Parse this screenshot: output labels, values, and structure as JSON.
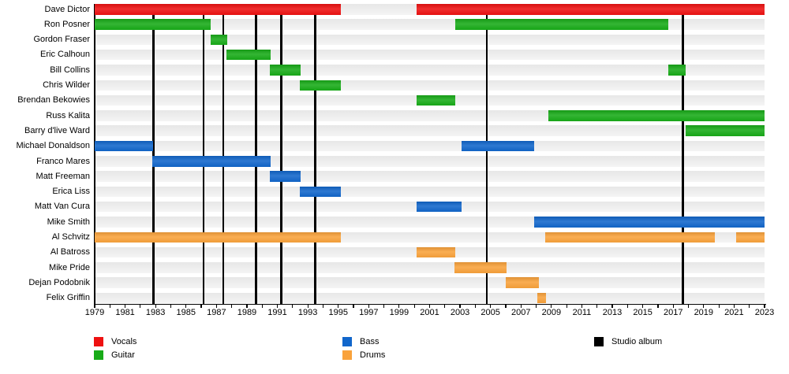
{
  "chart_data": {
    "type": "timeline",
    "title": "",
    "x_axis": {
      "start": 1979,
      "end": 2023,
      "minor_tick_interval": 1,
      "tick_label_interval": 2,
      "tick_labels": [
        "1979",
        "1981",
        "1983",
        "1985",
        "1987",
        "1989",
        "1991",
        "1993",
        "1995",
        "1997",
        "1999",
        "2001",
        "2003",
        "2005",
        "2007",
        "2009",
        "2011",
        "2013",
        "2015",
        "2017",
        "2019",
        "2021",
        "2023"
      ]
    },
    "role_colors": {
      "Vocals": "#ee1111",
      "Guitar": "#18ab18",
      "Bass": "#1166cb",
      "Drums": "#f9a23b"
    },
    "members": [
      {
        "name": "Dave Dictor",
        "role": "Vocals",
        "periods": [
          [
            1979,
            1995.15
          ],
          [
            2000.15,
            2023
          ]
        ]
      },
      {
        "name": "Ron Posner",
        "role": "Guitar",
        "periods": [
          [
            1979,
            1986.6
          ],
          [
            2002.7,
            2016.7
          ]
        ]
      },
      {
        "name": "Gordon Fraser",
        "role": "Guitar",
        "periods": [
          [
            1986.6,
            1987.7
          ]
        ]
      },
      {
        "name": "Eric Calhoun",
        "role": "Guitar",
        "periods": [
          [
            1987.65,
            1990.55
          ]
        ]
      },
      {
        "name": "Bill Collins",
        "role": "Guitar",
        "periods": [
          [
            1990.5,
            1992.55
          ],
          [
            2016.7,
            2017.8
          ]
        ]
      },
      {
        "name": "Chris Wilder",
        "role": "Guitar",
        "periods": [
          [
            1992.5,
            1995.15
          ]
        ]
      },
      {
        "name": "Brendan Bekowies",
        "role": "Guitar",
        "periods": [
          [
            2000.15,
            2002.7
          ]
        ]
      },
      {
        "name": "Russ Kalita",
        "role": "Guitar",
        "periods": [
          [
            2008.8,
            2023
          ]
        ]
      },
      {
        "name": "Barry d'live Ward",
        "role": "Guitar",
        "periods": [
          [
            2017.8,
            2023
          ]
        ]
      },
      {
        "name": "Michael Donaldson",
        "role": "Bass",
        "periods": [
          [
            1979,
            1982.85
          ],
          [
            2003.1,
            2007.85
          ]
        ]
      },
      {
        "name": "Franco Mares",
        "role": "Bass",
        "periods": [
          [
            1982.8,
            1990.55
          ]
        ]
      },
      {
        "name": "Matt Freeman",
        "role": "Bass",
        "periods": [
          [
            1990.5,
            1992.55
          ]
        ]
      },
      {
        "name": "Erica Liss",
        "role": "Bass",
        "periods": [
          [
            1992.5,
            1995.15
          ]
        ]
      },
      {
        "name": "Matt Van Cura",
        "role": "Bass",
        "periods": [
          [
            2000.15,
            2003.1
          ]
        ]
      },
      {
        "name": "Mike Smith",
        "role": "Bass",
        "periods": [
          [
            2007.85,
            2023
          ]
        ]
      },
      {
        "name": "Al Schvitz",
        "role": "Drums",
        "periods": [
          [
            1979,
            1995.15
          ],
          [
            2008.6,
            2019.75
          ],
          [
            2021.15,
            2023
          ]
        ]
      },
      {
        "name": "Al Batross",
        "role": "Drums",
        "periods": [
          [
            2000.15,
            2002.7
          ]
        ]
      },
      {
        "name": "Mike Pride",
        "role": "Drums",
        "periods": [
          [
            2002.65,
            2006.05
          ]
        ]
      },
      {
        "name": "Dejan Podobnik",
        "role": "Drums",
        "periods": [
          [
            2006.0,
            2008.2
          ]
        ]
      },
      {
        "name": "Felix Griffin",
        "role": "Drums",
        "periods": [
          [
            2008.1,
            2008.65
          ]
        ]
      }
    ],
    "studio_albums": [
      1982.85,
      1986.15,
      1987.45,
      1989.6,
      1991.25,
      1993.5,
      2004.75,
      2017.65
    ],
    "legend": {
      "columns": [
        [
          {
            "label": "Vocals",
            "color": "#ee1111"
          },
          {
            "label": "Guitar",
            "color": "#18ab18"
          }
        ],
        [
          {
            "label": "Bass",
            "color": "#1166cb"
          },
          {
            "label": "Drums",
            "color": "#f9a23b"
          }
        ],
        [
          {
            "label": "Studio album",
            "color": "#000000"
          }
        ]
      ]
    },
    "layout_hints": {
      "grid": false,
      "legend_position": "bottom",
      "bar_background": "#ececec"
    }
  }
}
